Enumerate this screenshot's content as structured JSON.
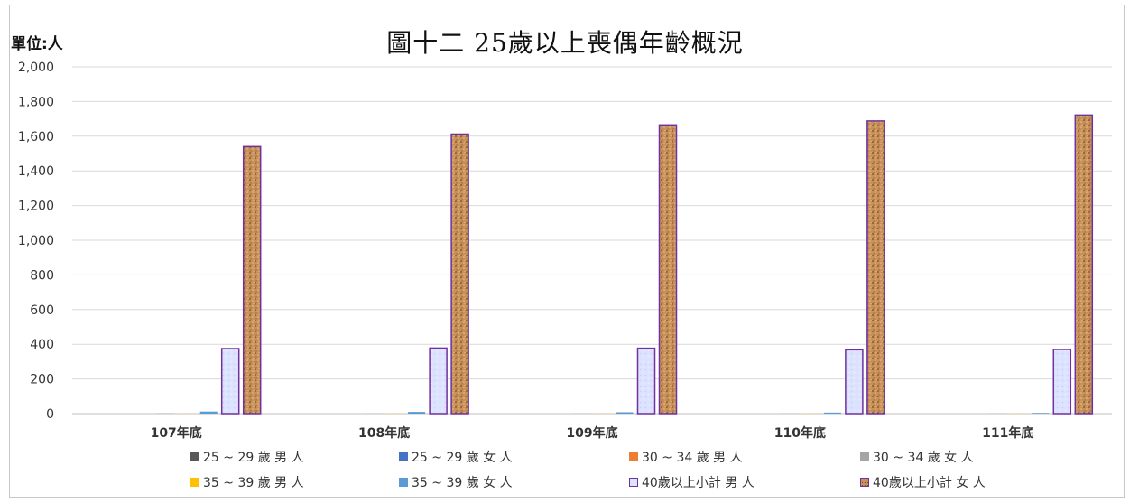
{
  "chart_data": {
    "type": "bar",
    "title": "圖十二  25歲以上喪偶年齡概況",
    "unit_label": "單位:人",
    "categories": [
      "107年底",
      "108年底",
      "109年底",
      "110年底",
      "111年底"
    ],
    "ylim": [
      0,
      2000
    ],
    "yticks": [
      0,
      200,
      400,
      600,
      800,
      1000,
      1200,
      1400,
      1600,
      1800,
      2000
    ],
    "ytick_labels": [
      "0",
      "200",
      "400",
      "600",
      "800",
      "1,000",
      "1,200",
      "1,400",
      "1,600",
      "1,800",
      "2,000"
    ],
    "grid": true,
    "legend_position": "bottom",
    "series": [
      {
        "name": "25 ~ 29 歲 男 人",
        "values": [
          0,
          0,
          0,
          0,
          0
        ],
        "color": "#595959",
        "pattern": "solid"
      },
      {
        "name": "25 ~ 29 歲 女 人",
        "values": [
          0,
          0,
          0,
          0,
          0
        ],
        "color": "#4472c4",
        "pattern": "solid"
      },
      {
        "name": "30 ~ 34 歲 男 人",
        "values": [
          0,
          0,
          0,
          0,
          0
        ],
        "color": "#ed7d31",
        "pattern": "solid"
      },
      {
        "name": "30 ~ 34 歲 女 人",
        "values": [
          2,
          1,
          1,
          1,
          1
        ],
        "color": "#a5a5a5",
        "pattern": "solid"
      },
      {
        "name": "35 ~ 39 歲 男 人",
        "values": [
          1,
          1,
          1,
          1,
          1
        ],
        "color": "#ffc000",
        "pattern": "solid"
      },
      {
        "name": "35 ~ 39 歲 女 人",
        "values": [
          12,
          10,
          8,
          6,
          4
        ],
        "color": "#5b9bd5",
        "pattern": "solid"
      },
      {
        "name": "40歲以上小計 男 人",
        "values": [
          375,
          378,
          377,
          368,
          370
        ],
        "color": "#d6dcff",
        "pattern": "lavender"
      },
      {
        "name": "40歲以上小計 女 人",
        "values": [
          1540,
          1612,
          1665,
          1688,
          1722
        ],
        "color": "#c8915a",
        "pattern": "cork"
      }
    ]
  }
}
